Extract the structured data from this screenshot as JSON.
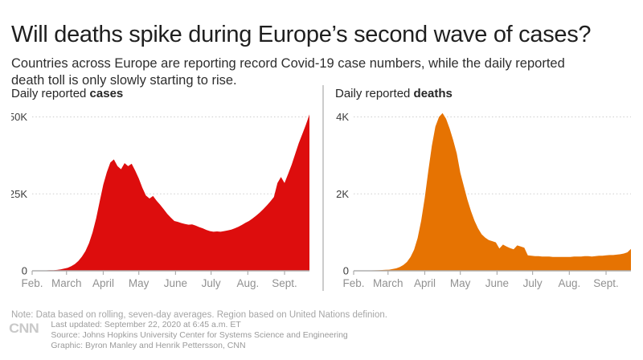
{
  "header": {
    "title": "Will deaths spike during Europe’s second wave of cases?",
    "subtitle": "Countries across Europe are reporting record Covid-19 case numbers, while the daily reported death toll is only slowly starting to rise."
  },
  "note": "Note: Data based on rolling, seven-day averages. Region based on United Nations definion.",
  "footer": {
    "logo": "CNN",
    "last_updated": "Last updated: September 22, 2020 at 6:45 a.m. ET",
    "source": "Source: Johns Hopkins University Center for Systems Science and Engineering",
    "graphic": "Graphic: Byron Manley and Henrik Pettersson, CNN"
  },
  "colors": {
    "cases": "#dd0d0d",
    "deaths": "#e67302",
    "gridline": "#cdcdcd",
    "axis": "#aeaeae"
  },
  "chart_data": [
    {
      "type": "area",
      "title_regular": "Daily reported ",
      "title_bold": "cases",
      "color_key": "cases",
      "unit": "thousands of cases per day (rolling 7-day average)",
      "x_range": [
        "Feb 1, 2020",
        "Sept 22, 2020"
      ],
      "total_days": 234,
      "day_step": 3,
      "ymax_tick": 50,
      "yticks": [
        {
          "v": 50,
          "label": "50K"
        },
        {
          "v": 25,
          "label": "25K"
        },
        {
          "v": 0,
          "label": "0"
        }
      ],
      "month_labels": [
        "Feb.",
        "March",
        "April",
        "May",
        "June",
        "July",
        "Aug.",
        "Sept."
      ],
      "month_days": [
        0,
        29,
        60,
        90,
        121,
        151,
        182,
        213
      ],
      "values_thousands": [
        0.05,
        0.06,
        0.08,
        0.1,
        0.13,
        0.17,
        0.22,
        0.3,
        0.45,
        0.7,
        1.0,
        1.5,
        2.2,
        3.2,
        4.6,
        6.4,
        9.0,
        12.5,
        17.0,
        22.5,
        28.0,
        32.0,
        35.2,
        36.2,
        34.0,
        33.0,
        35.0,
        34.0,
        34.8,
        32.5,
        30.0,
        27.0,
        24.5,
        23.5,
        24.3,
        22.8,
        21.5,
        20.0,
        18.5,
        17.3,
        16.2,
        15.9,
        15.5,
        15.2,
        15.0,
        15.1,
        14.7,
        14.2,
        13.8,
        13.3,
        12.9,
        12.7,
        12.8,
        12.7,
        12.9,
        13.1,
        13.4,
        13.8,
        14.3,
        14.9,
        15.6,
        16.2,
        17.0,
        17.9,
        18.9,
        20.0,
        21.2,
        22.5,
        24.0,
        28.5,
        30.5,
        28.5,
        31.5,
        34.5,
        38.0,
        41.5,
        44.5,
        47.5,
        50.8
      ]
    },
    {
      "type": "area",
      "title_regular": "Daily reported ",
      "title_bold": "deaths",
      "color_key": "deaths",
      "unit": "thousands of deaths per day (rolling 7-day average)",
      "x_range": [
        "Feb 1, 2020",
        "Sept 22, 2020"
      ],
      "total_days": 234,
      "day_step": 3,
      "ymax_tick": 4,
      "yticks": [
        {
          "v": 4,
          "label": "4K"
        },
        {
          "v": 2,
          "label": "2K"
        },
        {
          "v": 0,
          "label": "0"
        }
      ],
      "month_labels": [
        "Feb.",
        "March",
        "April",
        "May",
        "June",
        "July",
        "Aug.",
        "Sept."
      ],
      "month_days": [
        0,
        29,
        60,
        90,
        121,
        151,
        182,
        213
      ],
      "values_thousands": [
        0.005,
        0.005,
        0.006,
        0.007,
        0.008,
        0.01,
        0.012,
        0.015,
        0.02,
        0.025,
        0.03,
        0.045,
        0.065,
        0.1,
        0.15,
        0.23,
        0.36,
        0.55,
        0.85,
        1.3,
        1.9,
        2.6,
        3.25,
        3.75,
        4.0,
        4.1,
        3.95,
        3.7,
        3.4,
        3.05,
        2.55,
        2.2,
        1.85,
        1.55,
        1.3,
        1.1,
        0.95,
        0.86,
        0.8,
        0.77,
        0.74,
        0.58,
        0.68,
        0.63,
        0.59,
        0.56,
        0.66,
        0.63,
        0.6,
        0.4,
        0.39,
        0.38,
        0.38,
        0.37,
        0.37,
        0.37,
        0.36,
        0.36,
        0.36,
        0.36,
        0.36,
        0.36,
        0.37,
        0.37,
        0.37,
        0.38,
        0.38,
        0.37,
        0.38,
        0.39,
        0.39,
        0.4,
        0.41,
        0.41,
        0.42,
        0.43,
        0.45,
        0.48,
        0.57
      ]
    }
  ]
}
